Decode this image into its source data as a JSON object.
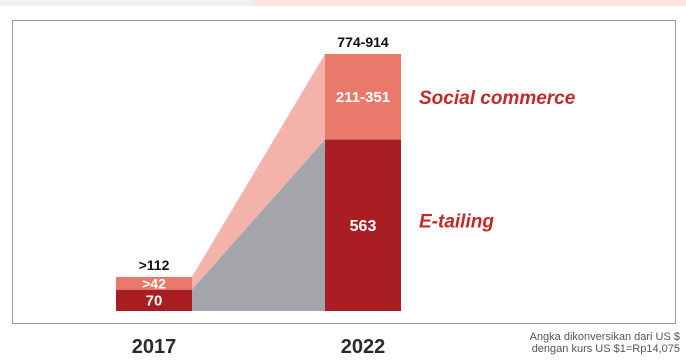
{
  "chart_data": {
    "type": "bar",
    "stacked": true,
    "categories": [
      "2017",
      "2022"
    ],
    "series": [
      {
        "name": "E-tailing",
        "values": [
          70,
          563
        ],
        "value_labels": [
          "70",
          "563"
        ],
        "color": "#a81e22"
      },
      {
        "name": "Social commerce",
        "values": [
          42,
          281
        ],
        "value_labels": [
          ">42",
          "211-351"
        ],
        "color": "#e8796b"
      }
    ],
    "totals": [
      ">112",
      "774-914"
    ],
    "total_values": [
      112,
      844
    ],
    "connector_colors": {
      "social": "#f4b3aa",
      "etailing": "#a4a5ab"
    },
    "title": "",
    "xlabel": "",
    "ylabel": "",
    "ylim": [
      0,
      900
    ],
    "grid": false,
    "legend": "right",
    "label_color": "#c62828"
  },
  "footnote": {
    "line1": "Angka dikonversikan dari US $",
    "line2": "dengan kurs US $1=Rp14,075"
  }
}
